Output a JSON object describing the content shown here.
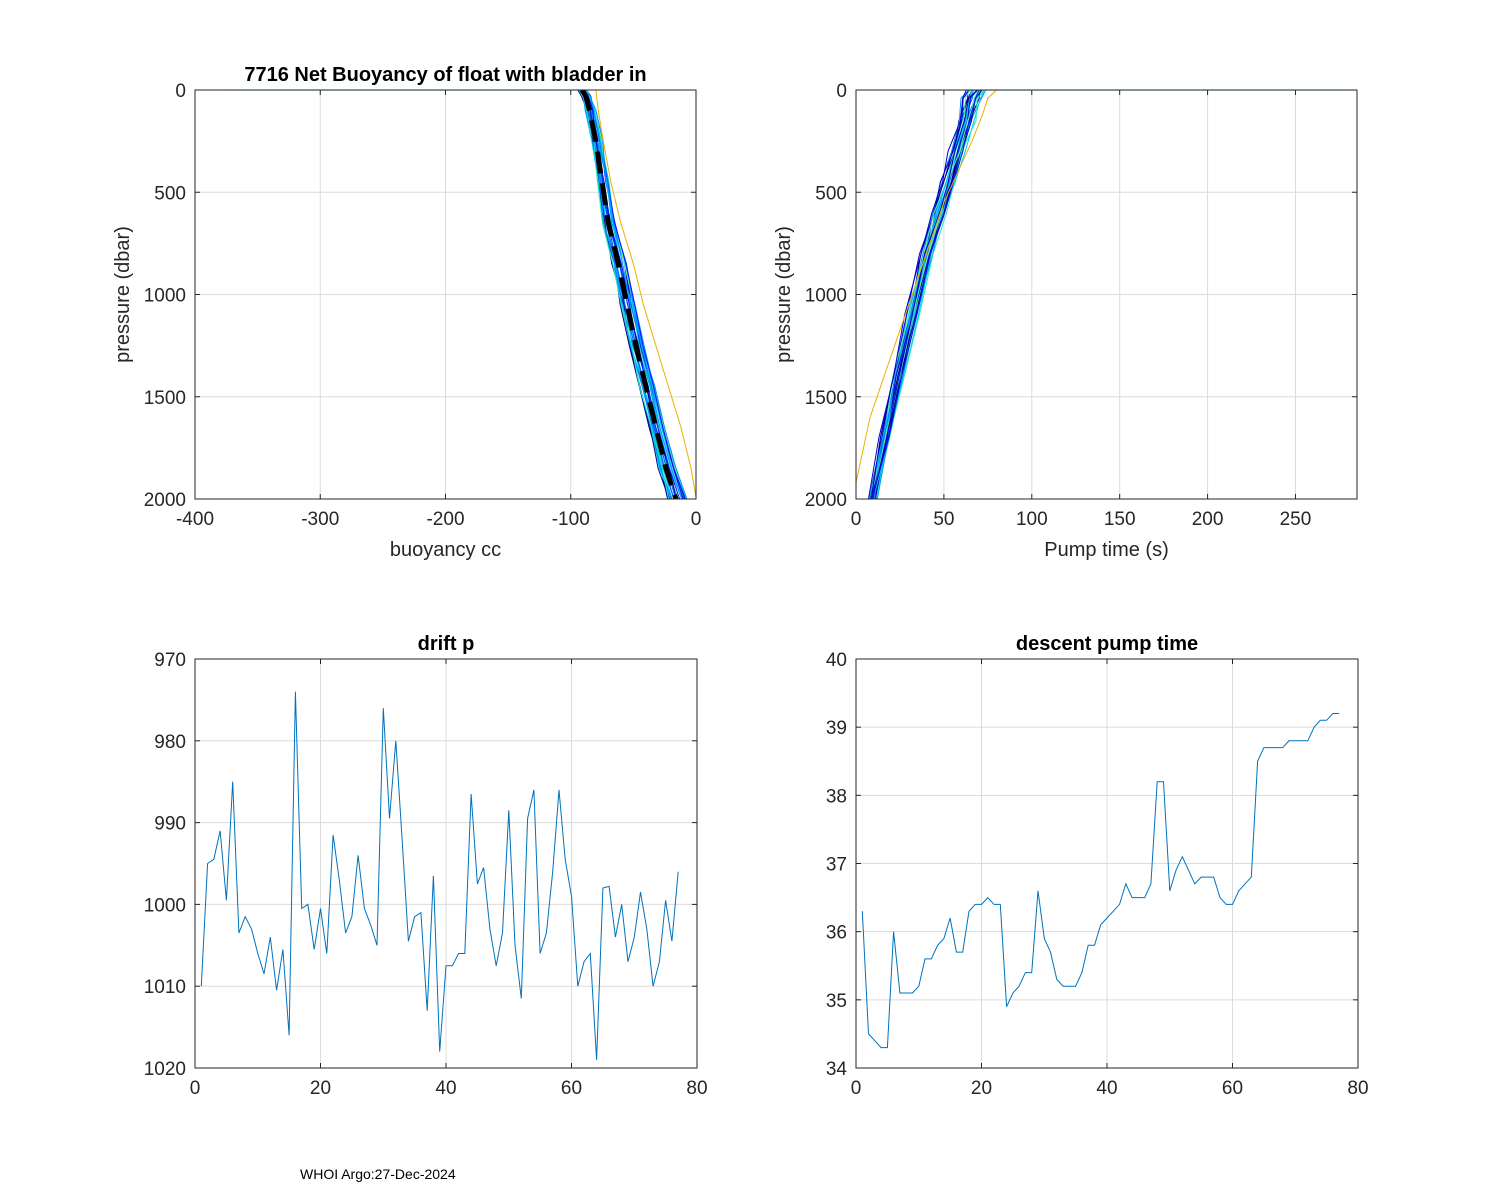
{
  "footer": "WHOI Argo:27-Dec-2024",
  "colors": {
    "bottom_series": "#0072BD",
    "grid": "#dcdcdc",
    "profile_palette": [
      "#000080",
      "#0000C8",
      "#0010FF",
      "#0050FF",
      "#0090FF",
      "#00C8F0",
      "#20E8C0",
      "#60F0A0"
    ],
    "outlier": "#E8B000",
    "mean": "#000000"
  },
  "chart_data": [
    {
      "id": "buoyancy",
      "type": "line",
      "title": "7716 Net Buoyancy of float with bladder in",
      "xlabel": "buoyancy cc",
      "ylabel": "pressure (dbar)",
      "xlim": [
        -400,
        0
      ],
      "ylim": [
        0,
        2000
      ],
      "y_reversed": true,
      "grid": true,
      "xticks": [
        -400,
        -300,
        -200,
        -100,
        0
      ],
      "yticks": [
        0,
        500,
        1000,
        1500,
        2000
      ],
      "mean_profile": {
        "x": [
          -91,
          -88,
          -85,
          -80,
          -75,
          -70,
          -62,
          -55,
          -48,
          -40,
          -32,
          -24,
          -16
        ],
        "y": [
          0,
          30,
          100,
          250,
          450,
          650,
          850,
          1050,
          1250,
          1450,
          1650,
          1850,
          2000
        ]
      },
      "outlier_profile": {
        "x": [
          -80,
          -78,
          -74,
          -68,
          -60,
          -50,
          -42,
          -32,
          -22,
          -12,
          -4,
          0
        ],
        "y": [
          0,
          100,
          250,
          450,
          650,
          850,
          1050,
          1250,
          1450,
          1650,
          1850,
          1990
        ]
      },
      "surface_line": {
        "x": [
          -375,
          -92
        ],
        "y": [
          0,
          0
        ]
      },
      "profile_spread": {
        "count": 28,
        "x_offset_range": [
          -7,
          8
        ],
        "surface_x_range": [
          -97,
          -85
        ]
      }
    },
    {
      "id": "pump_profile",
      "type": "line",
      "title": "",
      "xlabel": "Pump time (s)",
      "ylabel": "pressure (dbar)",
      "xlim": [
        0,
        285
      ],
      "ylim": [
        0,
        2000
      ],
      "y_reversed": true,
      "grid": true,
      "xticks": [
        0,
        50,
        100,
        150,
        200,
        250
      ],
      "yticks": [
        0,
        500,
        1000,
        1500,
        2000
      ],
      "mean_profile": {
        "x": [
          8,
          15,
          22,
          30,
          38,
          45,
          50,
          55,
          60,
          63,
          65
        ],
        "y": [
          2000,
          1700,
          1400,
          1100,
          800,
          600,
          450,
          300,
          150,
          40,
          0
        ]
      },
      "outlier_profile": {
        "x": [
          0,
          8,
          18,
          30,
          40,
          50,
          58,
          66,
          72,
          75,
          80
        ],
        "y": [
          1920,
          1600,
          1350,
          1050,
          800,
          550,
          400,
          250,
          120,
          40,
          0
        ]
      },
      "surface_line": {
        "x": [
          65,
          285
        ],
        "y": [
          0,
          0
        ]
      },
      "profile_spread": {
        "count": 28,
        "x_offset_range": [
          -3,
          8
        ],
        "surface_x_range": [
          60,
          80
        ]
      }
    },
    {
      "id": "drift_p",
      "type": "line",
      "title": "drift p",
      "xlabel": "",
      "ylabel": "",
      "xlim": [
        0,
        80
      ],
      "ylim": [
        970,
        1020
      ],
      "y_reversed": true,
      "grid": true,
      "xticks": [
        0,
        20,
        40,
        60,
        80
      ],
      "yticks": [
        970,
        980,
        990,
        1000,
        1010,
        1020
      ],
      "x": [
        1,
        2,
        3,
        4,
        5,
        6,
        7,
        8,
        9,
        10,
        11,
        12,
        13,
        14,
        15,
        16,
        17,
        18,
        19,
        20,
        21,
        22,
        23,
        24,
        25,
        26,
        27,
        28,
        29,
        30,
        31,
        32,
        33,
        34,
        35,
        36,
        37,
        38,
        39,
        40,
        41,
        42,
        43,
        44,
        45,
        46,
        47,
        48,
        49,
        50,
        51,
        52,
        53,
        54,
        55,
        56,
        57,
        58,
        59,
        60,
        61,
        62,
        63,
        64,
        65,
        66,
        67,
        68,
        69,
        70,
        71,
        72,
        73,
        74,
        75,
        76,
        77
      ],
      "values": [
        1010,
        995,
        994.5,
        991,
        999.5,
        985,
        1003.5,
        1001.5,
        1003,
        1006,
        1008.5,
        1004,
        1010.5,
        1005.5,
        1016,
        974,
        1000.5,
        1000,
        1005.5,
        1000.5,
        1006,
        991.5,
        997,
        1003.5,
        1001.5,
        994,
        1000.5,
        1002.5,
        1005,
        976,
        989.5,
        980,
        992,
        1004.5,
        1001.5,
        1001,
        1013,
        996.5,
        1018,
        1007.5,
        1007.5,
        1006,
        1006,
        986.5,
        997.5,
        995.5,
        1003,
        1007.5,
        1003.5,
        988.5,
        1005,
        1011.5,
        989.5,
        986,
        1006,
        1003.5,
        996,
        986,
        994.5,
        999,
        1010,
        1007,
        1006,
        1019,
        998,
        997.8,
        1004,
        1000,
        1007,
        1004,
        998.5,
        1003,
        1010,
        1007,
        999.5,
        1004.5,
        996
      ]
    },
    {
      "id": "descent_pump_time",
      "type": "line",
      "title": "descent pump time",
      "xlabel": "",
      "ylabel": "",
      "xlim": [
        0,
        80
      ],
      "ylim": [
        34,
        40
      ],
      "y_reversed": false,
      "grid": true,
      "xticks": [
        0,
        20,
        40,
        60,
        80
      ],
      "yticks": [
        34,
        35,
        36,
        37,
        38,
        39,
        40
      ],
      "x": [
        1,
        2,
        3,
        4,
        5,
        6,
        7,
        8,
        9,
        10,
        11,
        12,
        13,
        14,
        15,
        16,
        17,
        18,
        19,
        20,
        21,
        22,
        23,
        24,
        25,
        26,
        27,
        28,
        29,
        30,
        31,
        32,
        33,
        34,
        35,
        36,
        37,
        38,
        39,
        40,
        41,
        42,
        43,
        44,
        45,
        46,
        47,
        48,
        49,
        50,
        51,
        52,
        53,
        54,
        55,
        56,
        57,
        58,
        59,
        60,
        61,
        62,
        63,
        64,
        65,
        66,
        67,
        68,
        69,
        70,
        71,
        72,
        73,
        74,
        75,
        76,
        77
      ],
      "values": [
        36.3,
        34.5,
        34.4,
        34.3,
        34.3,
        36.0,
        35.1,
        35.1,
        35.1,
        35.2,
        35.6,
        35.6,
        35.8,
        35.9,
        36.2,
        35.7,
        35.7,
        36.3,
        36.4,
        36.4,
        36.5,
        36.4,
        36.4,
        34.9,
        35.1,
        35.2,
        35.4,
        35.4,
        36.6,
        35.9,
        35.7,
        35.3,
        35.2,
        35.2,
        35.2,
        35.4,
        35.8,
        35.8,
        36.1,
        36.2,
        36.3,
        36.4,
        36.7,
        36.5,
        36.5,
        36.5,
        36.7,
        38.2,
        38.2,
        36.6,
        36.9,
        37.1,
        36.9,
        36.7,
        36.8,
        36.8,
        36.8,
        36.5,
        36.4,
        36.4,
        36.6,
        36.7,
        36.8,
        38.5,
        38.7,
        38.7,
        38.7,
        38.7,
        38.8,
        38.8,
        38.8,
        38.8,
        39.0,
        39.1,
        39.1,
        39.2,
        39.2
      ]
    }
  ]
}
